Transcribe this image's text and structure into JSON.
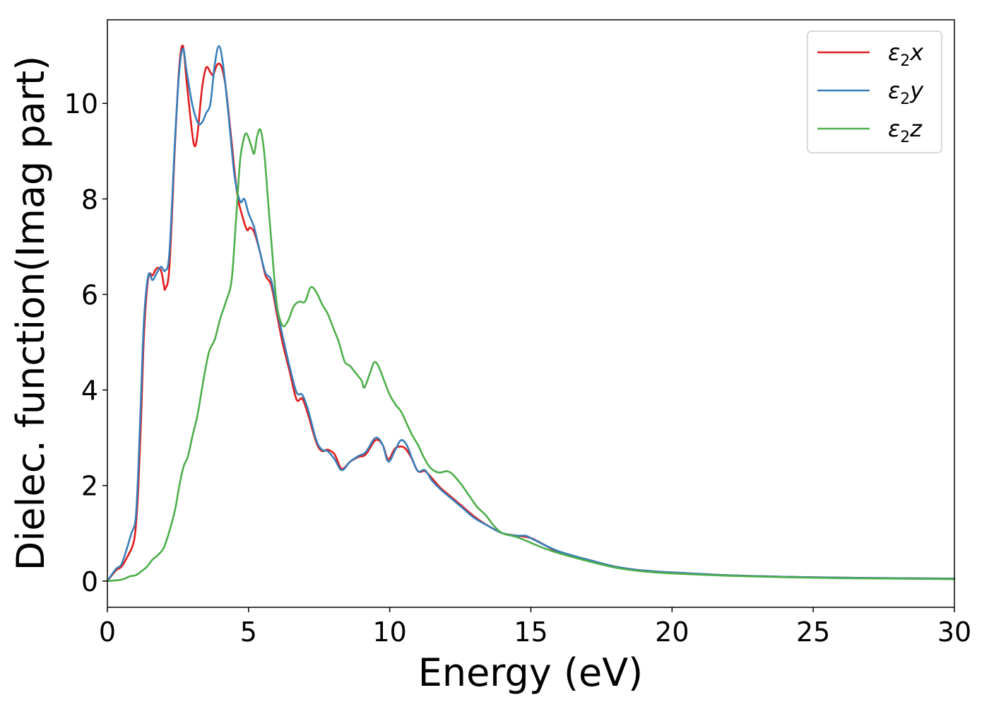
{
  "chart_data": {
    "type": "line",
    "xlabel": "Energy (eV)",
    "ylabel": "Dielec. function(Imag part)",
    "xlim": [
      0,
      30
    ],
    "ylim": [
      -0.55,
      11.75
    ],
    "xticks": [
      0,
      5,
      10,
      15,
      20,
      25,
      30
    ],
    "yticks": [
      0,
      2,
      4,
      6,
      8,
      10
    ],
    "grid": false,
    "legend_position": "top-right",
    "series": [
      {
        "name": "ε2x",
        "legend_base": "ε",
        "legend_sub": "2",
        "legend_suffix": "x",
        "color": "#e41a1c",
        "points": [
          [
            0,
            0
          ],
          [
            0.3,
            0.22
          ],
          [
            0.5,
            0.3
          ],
          [
            0.7,
            0.5
          ],
          [
            0.9,
            0.75
          ],
          [
            1.0,
            1.1
          ],
          [
            1.1,
            2.0
          ],
          [
            1.2,
            3.5
          ],
          [
            1.3,
            5.2
          ],
          [
            1.45,
            6.35
          ],
          [
            1.6,
            6.4
          ],
          [
            1.75,
            6.55
          ],
          [
            1.9,
            6.5
          ],
          [
            2.0,
            6.2
          ],
          [
            2.05,
            6.12
          ],
          [
            2.2,
            6.6
          ],
          [
            2.4,
            9.2
          ],
          [
            2.55,
            10.8
          ],
          [
            2.68,
            11.2
          ],
          [
            2.8,
            10.5
          ],
          [
            3.0,
            9.4
          ],
          [
            3.1,
            9.1
          ],
          [
            3.2,
            9.4
          ],
          [
            3.35,
            10.3
          ],
          [
            3.5,
            10.75
          ],
          [
            3.65,
            10.65
          ],
          [
            3.75,
            10.6
          ],
          [
            3.9,
            10.82
          ],
          [
            4.05,
            10.75
          ],
          [
            4.2,
            10.3
          ],
          [
            4.4,
            9.2
          ],
          [
            4.6,
            8.1
          ],
          [
            4.8,
            7.6
          ],
          [
            4.95,
            7.35
          ],
          [
            5.05,
            7.4
          ],
          [
            5.2,
            7.3
          ],
          [
            5.4,
            6.9
          ],
          [
            5.6,
            6.4
          ],
          [
            5.8,
            6.2
          ],
          [
            6.0,
            5.6
          ],
          [
            6.2,
            5.0
          ],
          [
            6.45,
            4.4
          ],
          [
            6.7,
            3.8
          ],
          [
            6.9,
            3.82
          ],
          [
            7.1,
            3.5
          ],
          [
            7.4,
            2.9
          ],
          [
            7.6,
            2.72
          ],
          [
            7.8,
            2.75
          ],
          [
            8.05,
            2.65
          ],
          [
            8.3,
            2.35
          ],
          [
            8.6,
            2.5
          ],
          [
            8.9,
            2.6
          ],
          [
            9.15,
            2.65
          ],
          [
            9.5,
            2.95
          ],
          [
            9.75,
            2.85
          ],
          [
            9.95,
            2.55
          ],
          [
            10.2,
            2.78
          ],
          [
            10.5,
            2.8
          ],
          [
            10.75,
            2.6
          ],
          [
            11.0,
            2.3
          ],
          [
            11.25,
            2.3
          ],
          [
            11.5,
            2.15
          ],
          [
            11.8,
            1.95
          ],
          [
            12.2,
            1.75
          ],
          [
            12.6,
            1.55
          ],
          [
            13.0,
            1.35
          ],
          [
            13.5,
            1.15
          ],
          [
            14.0,
            1.0
          ],
          [
            14.5,
            0.95
          ],
          [
            15.0,
            0.9
          ],
          [
            15.5,
            0.75
          ],
          [
            16.0,
            0.6
          ],
          [
            17.0,
            0.45
          ],
          [
            18.0,
            0.3
          ],
          [
            19.0,
            0.22
          ],
          [
            20.0,
            0.18
          ],
          [
            22.0,
            0.12
          ],
          [
            24.0,
            0.09
          ],
          [
            26.0,
            0.07
          ],
          [
            28.0,
            0.06
          ],
          [
            30.0,
            0.05
          ]
        ]
      },
      {
        "name": "ε2y",
        "legend_base": "ε",
        "legend_sub": "2",
        "legend_suffix": "y",
        "color": "#377eb8",
        "points": [
          [
            0,
            0
          ],
          [
            0.3,
            0.25
          ],
          [
            0.5,
            0.35
          ],
          [
            0.7,
            0.7
          ],
          [
            0.85,
            1.0
          ],
          [
            1.0,
            1.3
          ],
          [
            1.1,
            2.4
          ],
          [
            1.2,
            4.0
          ],
          [
            1.3,
            5.5
          ],
          [
            1.45,
            6.4
          ],
          [
            1.6,
            6.3
          ],
          [
            1.75,
            6.45
          ],
          [
            1.9,
            6.58
          ],
          [
            2.05,
            6.5
          ],
          [
            2.2,
            6.9
          ],
          [
            2.4,
            9.3
          ],
          [
            2.55,
            10.7
          ],
          [
            2.68,
            11.15
          ],
          [
            2.8,
            10.7
          ],
          [
            3.0,
            10.0
          ],
          [
            3.2,
            9.6
          ],
          [
            3.35,
            9.6
          ],
          [
            3.5,
            9.8
          ],
          [
            3.65,
            10.0
          ],
          [
            3.8,
            10.8
          ],
          [
            3.95,
            11.2
          ],
          [
            4.1,
            10.8
          ],
          [
            4.3,
            9.7
          ],
          [
            4.5,
            8.5
          ],
          [
            4.7,
            7.95
          ],
          [
            4.85,
            8.0
          ],
          [
            5.0,
            7.7
          ],
          [
            5.2,
            7.4
          ],
          [
            5.4,
            6.9
          ],
          [
            5.6,
            6.45
          ],
          [
            5.8,
            6.3
          ],
          [
            6.0,
            5.7
          ],
          [
            6.2,
            5.15
          ],
          [
            6.45,
            4.5
          ],
          [
            6.7,
            3.95
          ],
          [
            6.9,
            3.9
          ],
          [
            7.1,
            3.6
          ],
          [
            7.4,
            2.95
          ],
          [
            7.6,
            2.75
          ],
          [
            7.8,
            2.72
          ],
          [
            8.05,
            2.55
          ],
          [
            8.3,
            2.32
          ],
          [
            8.6,
            2.5
          ],
          [
            8.9,
            2.62
          ],
          [
            9.15,
            2.7
          ],
          [
            9.5,
            3.0
          ],
          [
            9.75,
            2.85
          ],
          [
            9.95,
            2.5
          ],
          [
            10.2,
            2.75
          ],
          [
            10.4,
            2.95
          ],
          [
            10.6,
            2.85
          ],
          [
            10.8,
            2.55
          ],
          [
            11.0,
            2.3
          ],
          [
            11.25,
            2.32
          ],
          [
            11.5,
            2.1
          ],
          [
            11.8,
            1.92
          ],
          [
            12.2,
            1.72
          ],
          [
            12.6,
            1.52
          ],
          [
            13.0,
            1.32
          ],
          [
            13.5,
            1.15
          ],
          [
            14.0,
            1.0
          ],
          [
            14.5,
            0.95
          ],
          [
            14.8,
            0.95
          ],
          [
            15.0,
            0.9
          ],
          [
            15.5,
            0.75
          ],
          [
            16.0,
            0.62
          ],
          [
            17.0,
            0.45
          ],
          [
            18.0,
            0.3
          ],
          [
            19.0,
            0.22
          ],
          [
            20.0,
            0.18
          ],
          [
            22.0,
            0.12
          ],
          [
            24.0,
            0.09
          ],
          [
            26.0,
            0.07
          ],
          [
            28.0,
            0.06
          ],
          [
            30.0,
            0.05
          ]
        ]
      },
      {
        "name": "ε2z",
        "legend_base": "ε",
        "legend_sub": "2",
        "legend_suffix": "z",
        "color": "#4daf4a",
        "points": [
          [
            0,
            0
          ],
          [
            0.5,
            0.03
          ],
          [
            0.8,
            0.1
          ],
          [
            1.0,
            0.12
          ],
          [
            1.2,
            0.2
          ],
          [
            1.4,
            0.3
          ],
          [
            1.6,
            0.45
          ],
          [
            1.8,
            0.55
          ],
          [
            2.0,
            0.7
          ],
          [
            2.2,
            1.05
          ],
          [
            2.4,
            1.5
          ],
          [
            2.55,
            2.0
          ],
          [
            2.7,
            2.4
          ],
          [
            2.85,
            2.6
          ],
          [
            3.0,
            3.0
          ],
          [
            3.2,
            3.5
          ],
          [
            3.4,
            4.2
          ],
          [
            3.6,
            4.8
          ],
          [
            3.8,
            5.05
          ],
          [
            4.0,
            5.5
          ],
          [
            4.2,
            5.85
          ],
          [
            4.4,
            6.3
          ],
          [
            4.55,
            7.5
          ],
          [
            4.7,
            8.8
          ],
          [
            4.85,
            9.3
          ],
          [
            4.95,
            9.35
          ],
          [
            5.1,
            9.1
          ],
          [
            5.2,
            8.95
          ],
          [
            5.3,
            9.3
          ],
          [
            5.42,
            9.45
          ],
          [
            5.55,
            9.0
          ],
          [
            5.7,
            7.9
          ],
          [
            5.85,
            6.8
          ],
          [
            6.0,
            5.8
          ],
          [
            6.2,
            5.35
          ],
          [
            6.4,
            5.45
          ],
          [
            6.6,
            5.75
          ],
          [
            6.8,
            5.85
          ],
          [
            7.0,
            5.85
          ],
          [
            7.2,
            6.15
          ],
          [
            7.4,
            6.05
          ],
          [
            7.6,
            5.8
          ],
          [
            7.8,
            5.6
          ],
          [
            8.0,
            5.3
          ],
          [
            8.2,
            5.0
          ],
          [
            8.4,
            4.6
          ],
          [
            8.6,
            4.5
          ],
          [
            8.8,
            4.35
          ],
          [
            9.0,
            4.2
          ],
          [
            9.1,
            4.05
          ],
          [
            9.3,
            4.35
          ],
          [
            9.45,
            4.58
          ],
          [
            9.6,
            4.5
          ],
          [
            9.8,
            4.2
          ],
          [
            10.0,
            3.9
          ],
          [
            10.2,
            3.7
          ],
          [
            10.4,
            3.55
          ],
          [
            10.6,
            3.3
          ],
          [
            10.8,
            3.05
          ],
          [
            11.0,
            2.85
          ],
          [
            11.2,
            2.6
          ],
          [
            11.4,
            2.4
          ],
          [
            11.6,
            2.3
          ],
          [
            11.8,
            2.27
          ],
          [
            12.0,
            2.3
          ],
          [
            12.2,
            2.25
          ],
          [
            12.5,
            2.05
          ],
          [
            12.8,
            1.8
          ],
          [
            13.1,
            1.55
          ],
          [
            13.4,
            1.38
          ],
          [
            13.7,
            1.15
          ],
          [
            14.0,
            1.0
          ],
          [
            14.5,
            0.92
          ],
          [
            15.0,
            0.8
          ],
          [
            15.5,
            0.68
          ],
          [
            16.0,
            0.58
          ],
          [
            17.0,
            0.42
          ],
          [
            18.0,
            0.28
          ],
          [
            19.0,
            0.2
          ],
          [
            20.0,
            0.16
          ],
          [
            22.0,
            0.11
          ],
          [
            24.0,
            0.08
          ],
          [
            26.0,
            0.06
          ],
          [
            28.0,
            0.05
          ],
          [
            30.0,
            0.04
          ]
        ]
      }
    ]
  }
}
